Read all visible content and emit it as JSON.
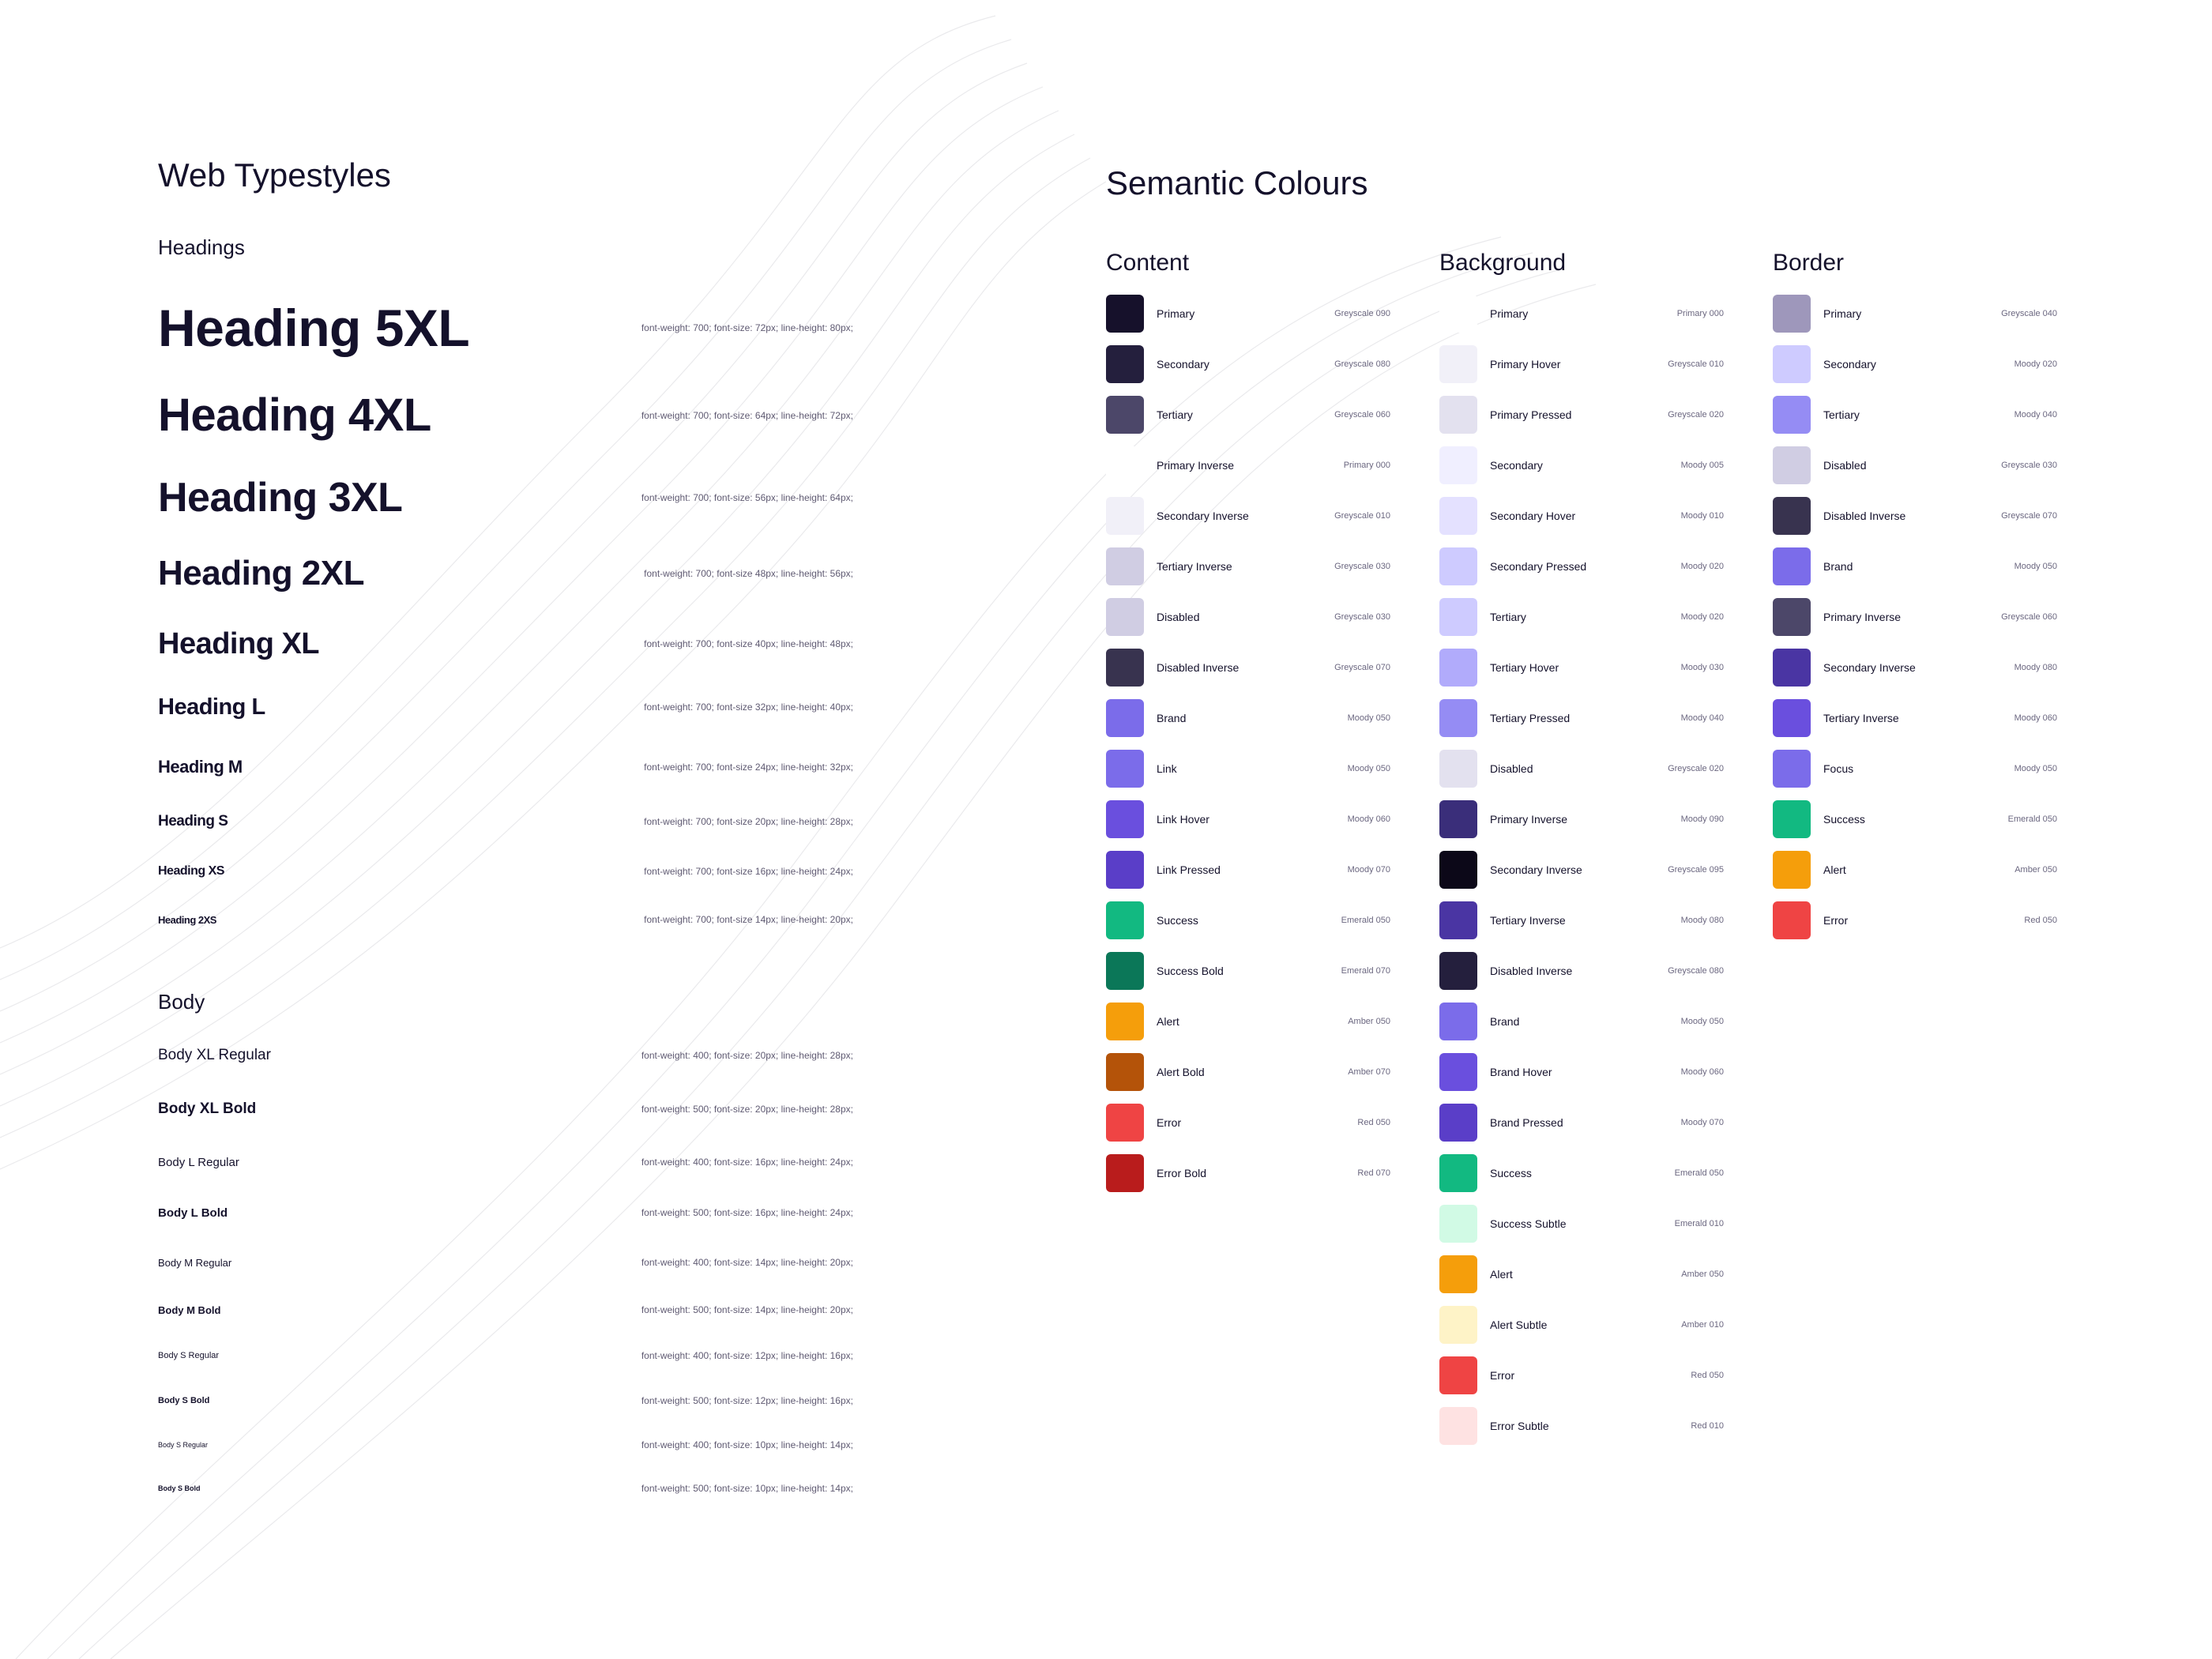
{
  "typestyles": {
    "title": "Web Typestyles",
    "headings_label": "Headings",
    "headings": [
      {
        "name": "Heading 5XL",
        "spec": "font-weight: 700; font-size: 72px; line-height: 80px;"
      },
      {
        "name": "Heading 4XL",
        "spec": "font-weight: 700; font-size: 64px; line-height: 72px;"
      },
      {
        "name": "Heading 3XL",
        "spec": "font-weight: 700; font-size: 56px; line-height: 64px;"
      },
      {
        "name": "Heading 2XL",
        "spec": "font-weight: 700; font-size 48px; line-height: 56px;"
      },
      {
        "name": "Heading XL",
        "spec": "font-weight: 700; font-size 40px; line-height: 48px;"
      },
      {
        "name": "Heading L",
        "spec": "font-weight: 700; font-size 32px; line-height: 40px;"
      },
      {
        "name": "Heading M",
        "spec": "font-weight: 700; font-size 24px; line-height: 32px;"
      },
      {
        "name": "Heading S",
        "spec": "font-weight: 700; font-size 20px; line-height: 28px;"
      },
      {
        "name": "Heading XS",
        "spec": "font-weight: 700; font-size 16px; line-height: 24px;"
      },
      {
        "name": "Heading 2XS",
        "spec": "font-weight: 700; font-size 14px; line-height: 20px;"
      }
    ],
    "body_label": "Body",
    "body": [
      {
        "name": "Body XL Regular",
        "spec": "font-weight: 400; font-size: 20px; line-height: 28px;"
      },
      {
        "name": "Body XL Bold",
        "spec": "font-weight: 500; font-size: 20px; line-height: 28px;"
      },
      {
        "name": "Body L Regular",
        "spec": "font-weight: 400; font-size: 16px; line-height: 24px;"
      },
      {
        "name": "Body L Bold",
        "spec": "font-weight: 500; font-size: 16px; line-height: 24px;"
      },
      {
        "name": "Body M Regular",
        "spec": "font-weight: 400; font-size: 14px; line-height: 20px;"
      },
      {
        "name": "Body M Bold",
        "spec": "font-weight: 500; font-size: 14px; line-height: 20px;"
      },
      {
        "name": "Body S Regular",
        "spec": "font-weight: 400; font-size: 12px; line-height: 16px;"
      },
      {
        "name": "Body S Bold",
        "spec": "font-weight: 500; font-size: 12px; line-height: 16px;"
      },
      {
        "name": "Body S Regular",
        "spec": "font-weight: 400; font-size: 10px; line-height: 14px;"
      },
      {
        "name": "Body S Bold",
        "spec": "font-weight: 500; font-size: 10px; line-height: 14px;"
      }
    ]
  },
  "colours": {
    "title": "Semantic Colours",
    "content": {
      "title": "Content",
      "items": [
        {
          "name": "Primary",
          "token": "Greyscale 090",
          "color": "#16112b"
        },
        {
          "name": "Secondary",
          "token": "Greyscale 080",
          "color": "#241f3d"
        },
        {
          "name": "Tertiary",
          "token": "Greyscale 060",
          "color": "#4c4769"
        },
        {
          "name": "Primary Inverse",
          "token": "Primary 000",
          "color": "#ffffff"
        },
        {
          "name": "Secondary Inverse",
          "token": "Greyscale 010",
          "color": "#f1f0f8"
        },
        {
          "name": "Tertiary Inverse",
          "token": "Greyscale 030",
          "color": "#d0cde3"
        },
        {
          "name": "Disabled",
          "token": "Greyscale 030",
          "color": "#d0cde3"
        },
        {
          "name": "Disabled Inverse",
          "token": "Greyscale 070",
          "color": "#38334f"
        },
        {
          "name": "Brand",
          "token": "Moody 050",
          "color": "#7b6cea"
        },
        {
          "name": "Link",
          "token": "Moody 050",
          "color": "#7b6cea"
        },
        {
          "name": "Link Hover",
          "token": "Moody 060",
          "color": "#6a4fde"
        },
        {
          "name": "Link Pressed",
          "token": "Moody 070",
          "color": "#5a3ec8"
        },
        {
          "name": "Success",
          "token": "Emerald 050",
          "color": "#12b981"
        },
        {
          "name": "Success Bold",
          "token": "Emerald 070",
          "color": "#0b7758"
        },
        {
          "name": "Alert",
          "token": "Amber 050",
          "color": "#f59e0b"
        },
        {
          "name": "Alert Bold",
          "token": "Amber 070",
          "color": "#b45309"
        },
        {
          "name": "Error",
          "token": "Red 050",
          "color": "#ef4444"
        },
        {
          "name": "Error Bold",
          "token": "Red 070",
          "color": "#b91c1c"
        }
      ]
    },
    "background": {
      "title": "Background",
      "items": [
        {
          "name": "Primary",
          "token": "Primary 000",
          "color": "#ffffff"
        },
        {
          "name": "Primary Hover",
          "token": "Greyscale 010",
          "color": "#f1f0f8"
        },
        {
          "name": "Primary Pressed",
          "token": "Greyscale 020",
          "color": "#e3e1ef"
        },
        {
          "name": "Secondary",
          "token": "Moody 005",
          "color": "#f0efff"
        },
        {
          "name": "Secondary Hover",
          "token": "Moody 010",
          "color": "#e4e1ff"
        },
        {
          "name": "Secondary Pressed",
          "token": "Moody 020",
          "color": "#cecbff"
        },
        {
          "name": "Tertiary",
          "token": "Moody 020",
          "color": "#cecbff"
        },
        {
          "name": "Tertiary Hover",
          "token": "Moody 030",
          "color": "#b1abfb"
        },
        {
          "name": "Tertiary Pressed",
          "token": "Moody 040",
          "color": "#958cf4"
        },
        {
          "name": "Disabled",
          "token": "Greyscale 020",
          "color": "#e3e1ef"
        },
        {
          "name": "Primary Inverse",
          "token": "Moody 090",
          "color": "#3a2e7a"
        },
        {
          "name": "Secondary Inverse",
          "token": "Greyscale 095",
          "color": "#0c0818"
        },
        {
          "name": "Tertiary Inverse",
          "token": "Moody 080",
          "color": "#4a35a3"
        },
        {
          "name": "Disabled Inverse",
          "token": "Greyscale 080",
          "color": "#241f3d"
        },
        {
          "name": "Brand",
          "token": "Moody 050",
          "color": "#7b6cea"
        },
        {
          "name": "Brand Hover",
          "token": "Moody 060",
          "color": "#6a4fde"
        },
        {
          "name": "Brand Pressed",
          "token": "Moody 070",
          "color": "#5a3ec8"
        },
        {
          "name": "Success",
          "token": "Emerald 050",
          "color": "#12b981"
        },
        {
          "name": "Success Subtle",
          "token": "Emerald 010",
          "color": "#d1fae5"
        },
        {
          "name": "Alert",
          "token": "Amber 050",
          "color": "#f59e0b"
        },
        {
          "name": "Alert Subtle",
          "token": "Amber 010",
          "color": "#fef3c7"
        },
        {
          "name": "Error",
          "token": "Red 050",
          "color": "#ef4444"
        },
        {
          "name": "Error Subtle",
          "token": "Red 010",
          "color": "#fee2e2"
        }
      ]
    },
    "border": {
      "title": "Border",
      "items": [
        {
          "name": "Primary",
          "token": "Greyscale 040",
          "color": "#9e97bb"
        },
        {
          "name": "Secondary",
          "token": "Moody 020",
          "color": "#cecbff"
        },
        {
          "name": "Tertiary",
          "token": "Moody 040",
          "color": "#958cf4"
        },
        {
          "name": "Disabled",
          "token": "Greyscale 030",
          "color": "#d0cde3"
        },
        {
          "name": "Disabled Inverse",
          "token": "Greyscale 070",
          "color": "#38334f"
        },
        {
          "name": "Brand",
          "token": "Moody 050",
          "color": "#7b6cea"
        },
        {
          "name": "Primary Inverse",
          "token": "Greyscale 060",
          "color": "#4c4769"
        },
        {
          "name": "Secondary Inverse",
          "token": "Moody 080",
          "color": "#4a35a3"
        },
        {
          "name": "Tertiary Inverse",
          "token": "Moody 060",
          "color": "#6a4fde"
        },
        {
          "name": "Focus",
          "token": "Moody 050",
          "color": "#7b6cea"
        },
        {
          "name": "Success",
          "token": "Emerald 050",
          "color": "#12b981"
        },
        {
          "name": "Alert",
          "token": "Amber 050",
          "color": "#f59e0b"
        },
        {
          "name": "Error",
          "token": "Red 050",
          "color": "#ef4444"
        }
      ]
    }
  }
}
